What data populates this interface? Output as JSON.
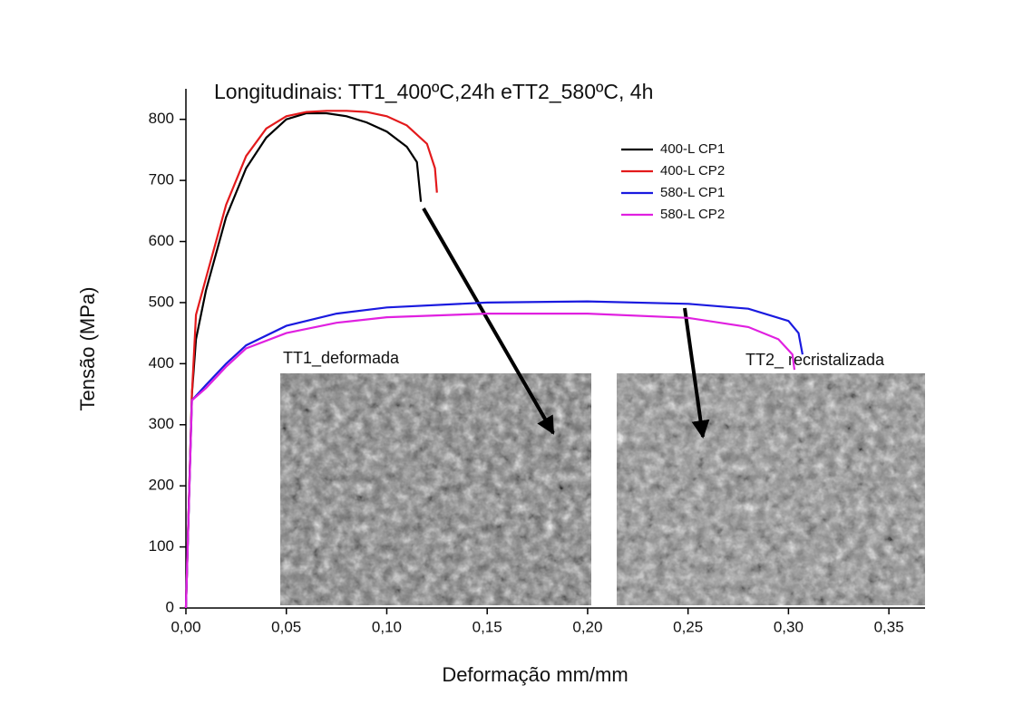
{
  "chart_data": {
    "type": "line",
    "title": "Longitudinais: TT1_400ºC,24h eTT2_580ºC, 4h",
    "x_label": "Deformação mm/mm",
    "y_label": "Tensão (MPa)",
    "xlim": [
      0,
      0.368
    ],
    "ylim": [
      0,
      850
    ],
    "xticks": [
      {
        "value": 0,
        "label": "0,00"
      },
      {
        "value": 0.05,
        "label": "0,05"
      },
      {
        "value": 0.1,
        "label": "0,10"
      },
      {
        "value": 0.15,
        "label": "0,15"
      },
      {
        "value": 0.2,
        "label": "0,20"
      },
      {
        "value": 0.25,
        "label": "0,25"
      },
      {
        "value": 0.3,
        "label": "0,30"
      },
      {
        "value": 0.35,
        "label": "0,35"
      }
    ],
    "yticks": [
      0,
      100,
      200,
      300,
      400,
      500,
      600,
      700,
      800
    ],
    "series": [
      {
        "name": "400-L CP1",
        "color": "#000000",
        "x": [
          0,
          0.003,
          0.005,
          0.01,
          0.02,
          0.03,
          0.04,
          0.05,
          0.06,
          0.07,
          0.08,
          0.09,
          0.1,
          0.11,
          0.115,
          0.117
        ],
        "values": [
          0,
          350,
          440,
          520,
          640,
          720,
          770,
          800,
          810,
          810,
          805,
          795,
          780,
          755,
          730,
          665
        ]
      },
      {
        "name": "400-L CP2",
        "color": "#e31a1c",
        "x": [
          0,
          0.003,
          0.005,
          0.01,
          0.02,
          0.03,
          0.04,
          0.05,
          0.06,
          0.07,
          0.08,
          0.09,
          0.1,
          0.11,
          0.12,
          0.124,
          0.125
        ],
        "values": [
          0,
          350,
          480,
          540,
          660,
          740,
          785,
          805,
          812,
          814,
          814,
          812,
          805,
          790,
          760,
          720,
          680
        ]
      },
      {
        "name": "580-L CP1",
        "color": "#1a1adf",
        "x": [
          0,
          0.003,
          0.01,
          0.02,
          0.03,
          0.05,
          0.075,
          0.1,
          0.15,
          0.2,
          0.25,
          0.28,
          0.3,
          0.305,
          0.307
        ],
        "values": [
          0,
          340,
          365,
          400,
          430,
          462,
          482,
          492,
          500,
          502,
          498,
          490,
          470,
          450,
          415
        ]
      },
      {
        "name": "580-L CP2",
        "color": "#e020e0",
        "x": [
          0,
          0.003,
          0.01,
          0.02,
          0.03,
          0.05,
          0.075,
          0.1,
          0.15,
          0.2,
          0.25,
          0.28,
          0.295,
          0.302,
          0.303
        ],
        "values": [
          0,
          340,
          360,
          395,
          425,
          450,
          467,
          476,
          482,
          482,
          475,
          460,
          440,
          415,
          390
        ]
      }
    ],
    "annotations": [
      "TT1_deformada",
      "TT2_ recristalizada"
    ]
  }
}
